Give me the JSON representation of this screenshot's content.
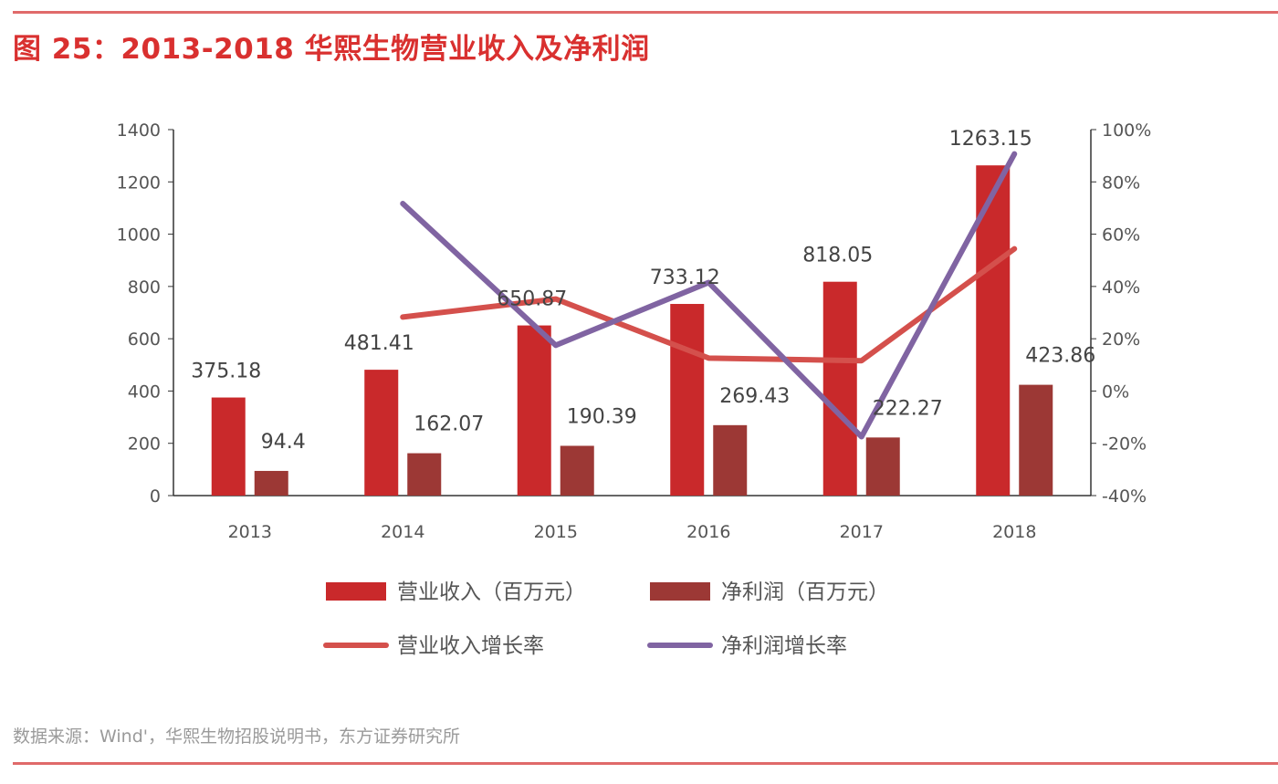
{
  "title": "图 25：2013-2018 华熙生物营业收入及净利润",
  "source": "数据来源：Wind'，华熙生物招股说明书，东方证券研究所",
  "chart_data": {
    "type": "bar+line",
    "title": "图 25：2013-2018 华熙生物营业收入及净利润",
    "categories": [
      "2013",
      "2014",
      "2015",
      "2016",
      "2017",
      "2018"
    ],
    "left_axis": {
      "ylim": [
        0,
        1400
      ],
      "ticks": [
        0,
        200,
        400,
        600,
        800,
        1000,
        1200,
        1400
      ]
    },
    "right_axis": {
      "ylim": [
        -40,
        100
      ],
      "ticks": [
        "-40%",
        "-20%",
        "0%",
        "20%",
        "40%",
        "60%",
        "80%",
        "100%"
      ],
      "tick_values": [
        -40,
        -20,
        0,
        20,
        40,
        60,
        80,
        100
      ]
    },
    "grid": false,
    "legend_placement": "bottom",
    "series": [
      {
        "name": "营业收入（百万元）",
        "type": "bar",
        "axis": "left",
        "color": "#c9292b",
        "values": [
          375.18,
          481.41,
          650.87,
          733.12,
          818.05,
          1263.15
        ],
        "labels": [
          "375.18",
          "481.41",
          "650.87",
          "733.12",
          "818.05",
          "1263.15"
        ]
      },
      {
        "name": "净利润（百万元）",
        "type": "bar",
        "axis": "left",
        "color": "#9c3835",
        "values": [
          94.4,
          162.07,
          190.39,
          269.43,
          222.27,
          423.86
        ],
        "labels": [
          "94.4",
          "162.07",
          "190.39",
          "269.43",
          "222.27",
          "423.86"
        ]
      },
      {
        "name": "营业收入增长率",
        "type": "line",
        "axis": "right",
        "color": "#d4504c",
        "values": [
          null,
          28.3,
          35.2,
          12.6,
          11.6,
          54.4
        ]
      },
      {
        "name": "净利润增长率",
        "type": "line",
        "axis": "right",
        "color": "#8064a2",
        "values": [
          null,
          71.7,
          17.5,
          41.5,
          -17.5,
          90.7
        ]
      }
    ]
  }
}
